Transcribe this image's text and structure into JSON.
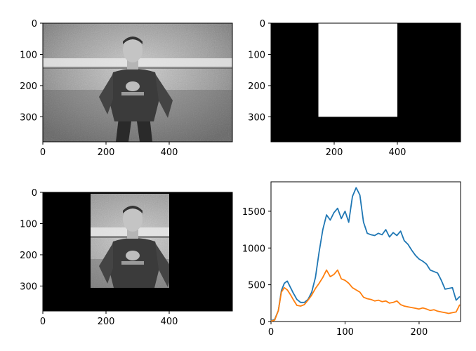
{
  "chart_data": [
    {
      "type": "image",
      "subject": "grayscale photo",
      "xlim": [
        0,
        600
      ],
      "ylim_inverted": [
        0,
        380
      ],
      "xticks": [
        "0",
        "200",
        "400"
      ],
      "yticks": [
        "0",
        "100",
        "200",
        "300"
      ]
    },
    {
      "type": "image",
      "subject": "binary mask",
      "xlim": [
        0,
        600
      ],
      "ylim_inverted": [
        0,
        380
      ],
      "mask_rect": {
        "x0": 150,
        "x1": 400,
        "y0": 0,
        "y1": 300
      },
      "colors": {
        "background": "#000000",
        "mask": "#ffffff"
      },
      "xticks": [
        "200",
        "400"
      ],
      "yticks": [
        "0",
        "100",
        "200",
        "300"
      ]
    },
    {
      "type": "image",
      "subject": "masked grayscale photo",
      "xlim": [
        0,
        600
      ],
      "ylim_inverted": [
        0,
        380
      ],
      "visible_rect": {
        "x0": 150,
        "x1": 400,
        "y0": 0,
        "y1": 300
      },
      "xticks": [
        "0",
        "200",
        "400"
      ],
      "yticks": [
        "0",
        "100",
        "200",
        "300"
      ]
    },
    {
      "type": "line",
      "xlim": [
        0,
        256
      ],
      "ylim": [
        0,
        1900
      ],
      "xticks": [
        "0",
        "100",
        "200"
      ],
      "yticks": [
        "0",
        "500",
        "1000",
        "1500"
      ],
      "series": [
        {
          "color": "#1f77b4",
          "x": [
            0,
            5,
            10,
            14,
            18,
            22,
            26,
            30,
            35,
            40,
            45,
            50,
            55,
            60,
            65,
            70,
            75,
            80,
            85,
            90,
            95,
            100,
            105,
            110,
            115,
            120,
            125,
            130,
            135,
            140,
            145,
            150,
            155,
            160,
            165,
            170,
            175,
            180,
            185,
            190,
            195,
            200,
            205,
            210,
            215,
            220,
            225,
            230,
            235,
            240,
            245,
            250,
            255
          ],
          "y": [
            10,
            30,
            150,
            420,
            520,
            550,
            470,
            390,
            300,
            260,
            260,
            300,
            400,
            600,
            950,
            1250,
            1450,
            1380,
            1480,
            1540,
            1400,
            1500,
            1350,
            1700,
            1820,
            1720,
            1350,
            1200,
            1180,
            1170,
            1200,
            1180,
            1250,
            1150,
            1210,
            1170,
            1230,
            1100,
            1050,
            970,
            900,
            850,
            820,
            780,
            700,
            680,
            660,
            560,
            440,
            450,
            460,
            290,
            340
          ]
        },
        {
          "color": "#ff7f0e",
          "x": [
            0,
            5,
            10,
            14,
            18,
            22,
            26,
            30,
            35,
            40,
            45,
            50,
            55,
            60,
            65,
            70,
            75,
            80,
            85,
            90,
            95,
            100,
            105,
            110,
            115,
            120,
            125,
            130,
            135,
            140,
            145,
            150,
            155,
            160,
            165,
            170,
            175,
            180,
            185,
            190,
            195,
            200,
            205,
            210,
            215,
            220,
            225,
            230,
            235,
            240,
            245,
            250,
            255
          ],
          "y": [
            5,
            20,
            150,
            400,
            460,
            430,
            370,
            300,
            220,
            210,
            230,
            290,
            360,
            450,
            520,
            600,
            700,
            610,
            640,
            700,
            580,
            560,
            520,
            460,
            430,
            400,
            330,
            310,
            300,
            280,
            290,
            270,
            280,
            250,
            260,
            280,
            230,
            210,
            200,
            190,
            180,
            170,
            185,
            170,
            150,
            160,
            140,
            130,
            120,
            110,
            120,
            130,
            230
          ]
        }
      ]
    }
  ]
}
